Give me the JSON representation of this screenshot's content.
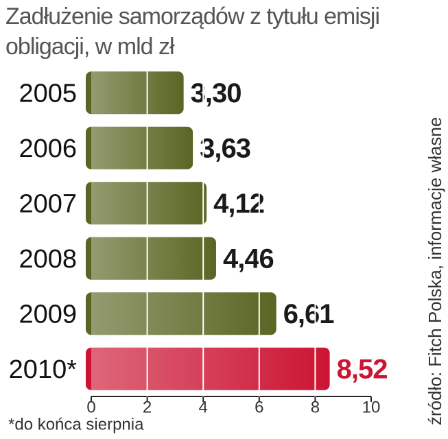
{
  "chart_data": {
    "type": "bar",
    "orientation": "horizontal",
    "title": "Zadłużenie samorządów z tytułu emisji obligacji, w mld zł",
    "categories": [
      "2005",
      "2006",
      "2007",
      "2008",
      "2009",
      "2010*"
    ],
    "values": [
      3.3,
      3.63,
      4.12,
      4.46,
      6.61,
      8.52
    ],
    "value_labels": [
      "3,30",
      "3,63",
      "4,12",
      "4,46",
      "6,61",
      "8,52"
    ],
    "colors": [
      "#5b6523",
      "#5b6523",
      "#5b6523",
      "#5b6523",
      "#5b6523",
      "#cc1433"
    ],
    "value_label_colors": [
      "#1a1a1a",
      "#1a1a1a",
      "#1a1a1a",
      "#1a1a1a",
      "#1a1a1a",
      "#cc1433"
    ],
    "xlim": [
      0,
      10
    ],
    "xticks": [
      0,
      2,
      4,
      6,
      8,
      10
    ],
    "grid": true,
    "note": "*do końca sierpnia",
    "source": "źródło: Fitch Polska, informacje własne"
  }
}
